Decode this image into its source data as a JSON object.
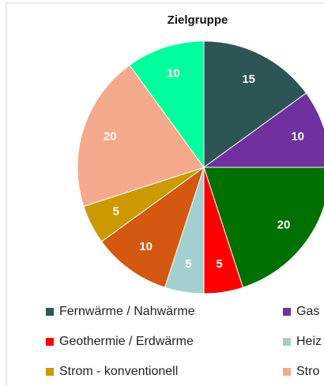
{
  "chart_data": {
    "type": "pie",
    "title": "Zielgruppe",
    "categories": [
      "Fernwärme / Nahwärme",
      "Gas",
      null,
      "Geothermie / Erdwärme",
      "Heiz",
      null,
      "Strom - konventionell",
      "Stro",
      null
    ],
    "values": [
      15,
      10,
      20,
      5,
      5,
      10,
      5,
      20,
      10
    ],
    "colors": [
      "#2e5555",
      "#7030a0",
      "#007000",
      "#ff0000",
      "#a3cfd0",
      "#d4580f",
      "#cc9a00",
      "#f5a98c",
      "#00ff9c"
    ],
    "legend": "bottom"
  }
}
